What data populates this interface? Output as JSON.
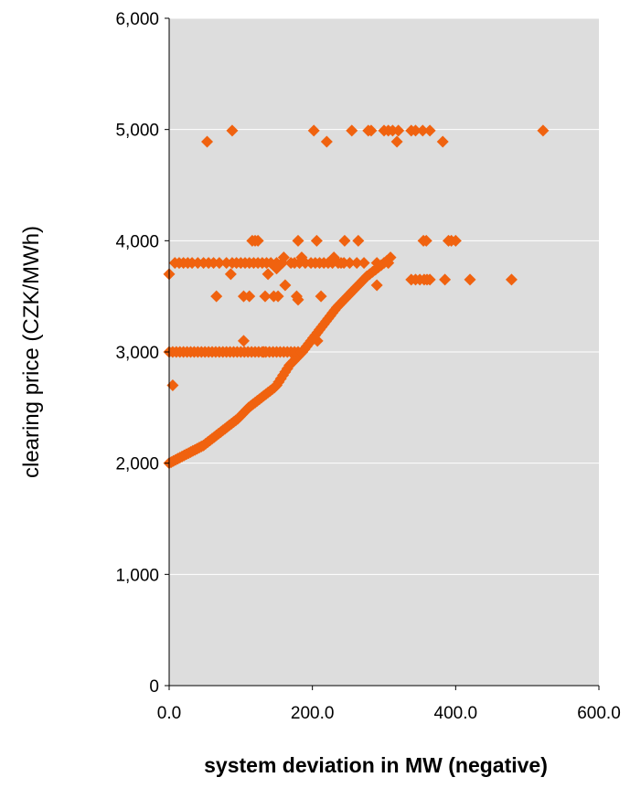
{
  "chart_data": {
    "type": "scatter",
    "xlabel": "system deviation in MW (negative)",
    "ylabel": "clearing price (CZK/MWh)",
    "xlim": [
      0,
      600
    ],
    "ylim": [
      0,
      6000
    ],
    "x_ticks": [
      0,
      200,
      400,
      600
    ],
    "y_ticks": [
      0,
      1000,
      2000,
      3000,
      4000,
      5000,
      6000
    ],
    "x_tick_labels": [
      "0.0",
      "200.0",
      "400.0",
      "600.0"
    ],
    "y_tick_labels": [
      "0",
      "1,000",
      "2,000",
      "3,000",
      "4,000",
      "5,000",
      "6,000"
    ],
    "grid": "horizontal",
    "legend": "none",
    "plot_background": "#dddddd",
    "marker_color": "#f0620f",
    "marker_shape": "diamond",
    "series": [
      {
        "points": [
          [
            0,
            2000
          ],
          [
            3,
            2010
          ],
          [
            6,
            2020
          ],
          [
            9,
            2030
          ],
          [
            12,
            2040
          ],
          [
            15,
            2050
          ],
          [
            18,
            2060
          ],
          [
            21,
            2070
          ],
          [
            24,
            2080
          ],
          [
            27,
            2090
          ],
          [
            30,
            2100
          ],
          [
            33,
            2110
          ],
          [
            36,
            2120
          ],
          [
            39,
            2130
          ],
          [
            42,
            2140
          ],
          [
            45,
            2150
          ],
          [
            48,
            2160
          ],
          [
            51,
            2175
          ],
          [
            54,
            2190
          ],
          [
            57,
            2205
          ],
          [
            60,
            2220
          ],
          [
            63,
            2235
          ],
          [
            66,
            2250
          ],
          [
            69,
            2265
          ],
          [
            72,
            2280
          ],
          [
            75,
            2295
          ],
          [
            78,
            2310
          ],
          [
            81,
            2325
          ],
          [
            84,
            2340
          ],
          [
            87,
            2355
          ],
          [
            90,
            2370
          ],
          [
            93,
            2385
          ],
          [
            96,
            2400
          ],
          [
            99,
            2420
          ],
          [
            102,
            2440
          ],
          [
            105,
            2460
          ],
          [
            108,
            2480
          ],
          [
            111,
            2500
          ],
          [
            114,
            2515
          ],
          [
            117,
            2530
          ],
          [
            120,
            2545
          ],
          [
            123,
            2560
          ],
          [
            126,
            2575
          ],
          [
            129,
            2590
          ],
          [
            132,
            2605
          ],
          [
            135,
            2620
          ],
          [
            138,
            2635
          ],
          [
            141,
            2650
          ],
          [
            144,
            2665
          ],
          [
            147,
            2680
          ],
          [
            150,
            2700
          ],
          [
            153,
            2730
          ],
          [
            156,
            2760
          ],
          [
            159,
            2790
          ],
          [
            162,
            2820
          ],
          [
            165,
            2850
          ],
          [
            168,
            2880
          ],
          [
            171,
            2900
          ],
          [
            174,
            2920
          ],
          [
            177,
            2940
          ],
          [
            180,
            2960
          ],
          [
            183,
            2980
          ],
          [
            186,
            3000
          ],
          [
            189,
            3025
          ],
          [
            192,
            3050
          ],
          [
            195,
            3075
          ],
          [
            198,
            3100
          ],
          [
            201,
            3125
          ],
          [
            204,
            3150
          ],
          [
            207,
            3175
          ],
          [
            210,
            3200
          ],
          [
            213,
            3225
          ],
          [
            216,
            3250
          ],
          [
            219,
            3275
          ],
          [
            222,
            3300
          ],
          [
            225,
            3325
          ],
          [
            228,
            3350
          ],
          [
            231,
            3375
          ],
          [
            234,
            3400
          ],
          [
            237,
            3420
          ],
          [
            240,
            3440
          ],
          [
            243,
            3460
          ],
          [
            246,
            3480
          ],
          [
            249,
            3500
          ],
          [
            252,
            3520
          ],
          [
            255,
            3540
          ],
          [
            258,
            3560
          ],
          [
            261,
            3580
          ],
          [
            264,
            3600
          ],
          [
            267,
            3620
          ],
          [
            270,
            3640
          ],
          [
            273,
            3660
          ],
          [
            276,
            3680
          ],
          [
            280,
            3700
          ],
          [
            284,
            3720
          ],
          [
            288,
            3740
          ],
          [
            292,
            3760
          ],
          [
            296,
            3780
          ],
          [
            300,
            3800
          ],
          [
            304,
            3820
          ],
          [
            309,
            3850
          ],
          [
            0,
            3000
          ],
          [
            5,
            3000
          ],
          [
            10,
            3000
          ],
          [
            15,
            3000
          ],
          [
            20,
            3000
          ],
          [
            25,
            3000
          ],
          [
            30,
            3000
          ],
          [
            35,
            3000
          ],
          [
            40,
            3000
          ],
          [
            45,
            3000
          ],
          [
            50,
            3000
          ],
          [
            55,
            3000
          ],
          [
            60,
            3000
          ],
          [
            65,
            3000
          ],
          [
            70,
            3000
          ],
          [
            75,
            3000
          ],
          [
            80,
            3000
          ],
          [
            85,
            3000
          ],
          [
            90,
            3000
          ],
          [
            95,
            3000
          ],
          [
            100,
            3000
          ],
          [
            105,
            3000
          ],
          [
            110,
            3000
          ],
          [
            115,
            3000
          ],
          [
            120,
            3000
          ],
          [
            125,
            3000
          ],
          [
            130,
            3000
          ],
          [
            135,
            3000
          ],
          [
            140,
            3000
          ],
          [
            145,
            3000
          ],
          [
            150,
            3000
          ],
          [
            155,
            3000
          ],
          [
            160,
            3000
          ],
          [
            165,
            3000
          ],
          [
            170,
            3000
          ],
          [
            175,
            3000
          ],
          [
            180,
            3000
          ],
          [
            185,
            3000
          ],
          [
            8,
            3800
          ],
          [
            14,
            3800
          ],
          [
            20,
            3800
          ],
          [
            26,
            3800
          ],
          [
            32,
            3800
          ],
          [
            40,
            3800
          ],
          [
            48,
            3800
          ],
          [
            55,
            3800
          ],
          [
            62,
            3800
          ],
          [
            70,
            3800
          ],
          [
            80,
            3800
          ],
          [
            88,
            3800
          ],
          [
            94,
            3800
          ],
          [
            100,
            3800
          ],
          [
            106,
            3800
          ],
          [
            112,
            3800
          ],
          [
            118,
            3800
          ],
          [
            124,
            3800
          ],
          [
            130,
            3800
          ],
          [
            136,
            3800
          ],
          [
            142,
            3800
          ],
          [
            150,
            3800
          ],
          [
            158,
            3800
          ],
          [
            170,
            3800
          ],
          [
            182,
            3800
          ],
          [
            190,
            3800
          ],
          [
            198,
            3800
          ],
          [
            204,
            3800
          ],
          [
            210,
            3800
          ],
          [
            216,
            3800
          ],
          [
            222,
            3800
          ],
          [
            228,
            3800
          ],
          [
            236,
            3800
          ],
          [
            244,
            3800
          ],
          [
            252,
            3800
          ],
          [
            262,
            3800
          ],
          [
            272,
            3800
          ],
          [
            290,
            3800
          ],
          [
            306,
            3800
          ],
          [
            0,
            3700
          ],
          [
            86,
            3700
          ],
          [
            138,
            3700
          ],
          [
            150,
            3750
          ],
          [
            160,
            3850
          ],
          [
            175,
            3800
          ],
          [
            185,
            3850
          ],
          [
            230,
            3850
          ],
          [
            240,
            3800
          ],
          [
            66,
            3500
          ],
          [
            104,
            3500
          ],
          [
            112,
            3500
          ],
          [
            134,
            3500
          ],
          [
            146,
            3500
          ],
          [
            152,
            3500
          ],
          [
            162,
            3600
          ],
          [
            178,
            3500
          ],
          [
            180,
            3470
          ],
          [
            212,
            3500
          ],
          [
            290,
            3600
          ],
          [
            338,
            3650
          ],
          [
            344,
            3650
          ],
          [
            350,
            3650
          ],
          [
            356,
            3650
          ],
          [
            360,
            3650
          ],
          [
            364,
            3650
          ],
          [
            385,
            3650
          ],
          [
            420,
            3650
          ],
          [
            478,
            3650
          ],
          [
            116,
            4000
          ],
          [
            120,
            4000
          ],
          [
            124,
            4000
          ],
          [
            180,
            4000
          ],
          [
            206,
            4000
          ],
          [
            245,
            4000
          ],
          [
            264,
            4000
          ],
          [
            355,
            4000
          ],
          [
            359,
            4000
          ],
          [
            390,
            4000
          ],
          [
            394,
            4000
          ],
          [
            400,
            4000
          ],
          [
            53,
            4890
          ],
          [
            88,
            4990
          ],
          [
            202,
            4990
          ],
          [
            220,
            4890
          ],
          [
            255,
            4990
          ],
          [
            278,
            4990
          ],
          [
            282,
            4990
          ],
          [
            300,
            4990
          ],
          [
            306,
            4990
          ],
          [
            312,
            4990
          ],
          [
            318,
            4890
          ],
          [
            320,
            4990
          ],
          [
            338,
            4990
          ],
          [
            344,
            4990
          ],
          [
            354,
            4990
          ],
          [
            364,
            4990
          ],
          [
            382,
            4890
          ],
          [
            522,
            4990
          ],
          [
            5,
            2700
          ],
          [
            104,
            3100
          ],
          [
            132,
            3000
          ],
          [
            207,
            3100
          ]
        ]
      }
    ]
  }
}
